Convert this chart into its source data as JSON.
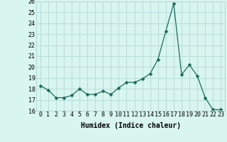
{
  "x": [
    0,
    1,
    2,
    3,
    4,
    5,
    6,
    7,
    8,
    9,
    10,
    11,
    12,
    13,
    14,
    15,
    16,
    17,
    18,
    19,
    20,
    21,
    22,
    23
  ],
  "y": [
    18.3,
    17.9,
    17.2,
    17.2,
    17.4,
    18.0,
    17.5,
    17.5,
    17.8,
    17.5,
    18.1,
    18.6,
    18.6,
    18.9,
    19.4,
    20.7,
    23.3,
    25.8,
    19.3,
    20.2,
    19.2,
    17.2,
    16.1,
    16.1
  ],
  "line_color": "#1a6b5a",
  "marker": "D",
  "marker_size": 2.5,
  "bg_color": "#d8f5f0",
  "grid_color": "#b8ddd8",
  "xlabel": "Humidex (Indice chaleur)",
  "xlim": [
    -0.5,
    23.5
  ],
  "ylim": [
    16,
    26
  ],
  "yticks": [
    16,
    17,
    18,
    19,
    20,
    21,
    22,
    23,
    24,
    25,
    26
  ],
  "xticks": [
    0,
    1,
    2,
    3,
    4,
    5,
    6,
    7,
    8,
    9,
    10,
    11,
    12,
    13,
    14,
    15,
    16,
    17,
    18,
    19,
    20,
    21,
    22,
    23
  ],
  "xtick_labels": [
    "0",
    "1",
    "2",
    "3",
    "4",
    "5",
    "6",
    "7",
    "8",
    "9",
    "10",
    "11",
    "12",
    "13",
    "14",
    "15",
    "16",
    "17",
    "18",
    "19",
    "20",
    "21",
    "22",
    "23"
  ],
  "xlabel_fontsize": 7,
  "tick_fontsize": 6
}
